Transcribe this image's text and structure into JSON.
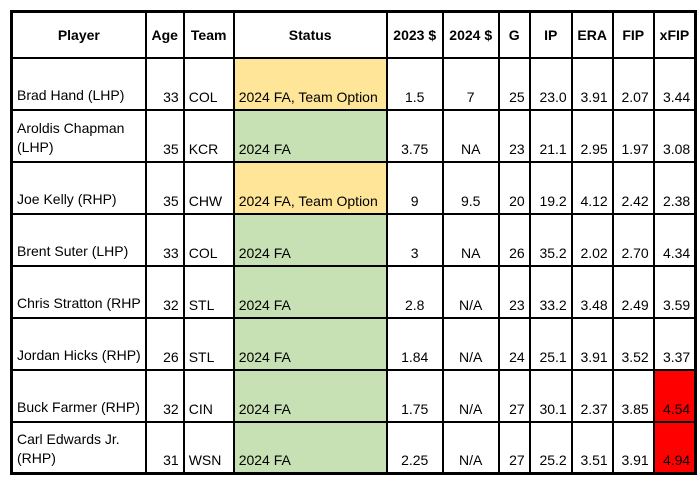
{
  "colors": {
    "status_team_option_yellow": "#FFE598",
    "status_fa_green": "#C7E1B5",
    "xfip_alert_red": "#FF0000",
    "grid_line_black": "#000000",
    "text_black": "#000000",
    "cell_white": "#FFFFFF"
  },
  "chart_data": {
    "type": "table",
    "columns": [
      "Player",
      "Age",
      "Team",
      "Status",
      "2023 $",
      "2024 $",
      "G",
      "IP",
      "ERA",
      "FIP",
      "xFIP"
    ],
    "rows": [
      {
        "player": "Brad Hand (LHP)",
        "age": "33",
        "team": "COL",
        "status": "2024 FA, Team Option",
        "status_color": "yellow",
        "m2023": "1.5",
        "m2024": "7",
        "g": "25",
        "ip": "23.0",
        "era": "3.91",
        "fip": "2.07",
        "xfip": "3.44",
        "xfip_alert": false
      },
      {
        "player": "Aroldis Chapman\n(LHP)",
        "age": "35",
        "team": "KCR",
        "status": "2024 FA",
        "status_color": "green",
        "m2023": "3.75",
        "m2024": "NA",
        "g": "23",
        "ip": "21.1",
        "era": "2.95",
        "fip": "1.97",
        "xfip": "3.08",
        "xfip_alert": false
      },
      {
        "player": "Joe Kelly (RHP)",
        "age": "35",
        "team": "CHW",
        "status": "2024 FA, Team Option",
        "status_color": "yellow",
        "m2023": "9",
        "m2024": "9.5",
        "g": "20",
        "ip": "19.2",
        "era": "4.12",
        "fip": "2.42",
        "xfip": "2.38",
        "xfip_alert": false
      },
      {
        "player": "Brent Suter (LHP)",
        "age": "33",
        "team": "COL",
        "status": "2024 FA",
        "status_color": "green",
        "m2023": "3",
        "m2024": "NA",
        "g": "26",
        "ip": "35.2",
        "era": "2.02",
        "fip": "2.70",
        "xfip": "4.34",
        "xfip_alert": false
      },
      {
        "player": "Chris Stratton (RHP",
        "age": "32",
        "team": "STL",
        "status": "2024 FA",
        "status_color": "green",
        "m2023": "2.8",
        "m2024": "N/A",
        "g": "23",
        "ip": "33.2",
        "era": "3.48",
        "fip": "2.49",
        "xfip": "3.59",
        "xfip_alert": false
      },
      {
        "player": "Jordan Hicks (RHP)",
        "age": "26",
        "team": "STL",
        "status": "2024 FA",
        "status_color": "green",
        "m2023": "1.84",
        "m2024": "N/A",
        "g": "24",
        "ip": "25.1",
        "era": "3.91",
        "fip": "3.52",
        "xfip": "3.37",
        "xfip_alert": false
      },
      {
        "player": "Buck Farmer (RHP)",
        "age": "32",
        "team": "CIN",
        "status": "2024 FA",
        "status_color": "green",
        "m2023": "1.75",
        "m2024": "N/A",
        "g": "27",
        "ip": "30.1",
        "era": "2.37",
        "fip": "3.85",
        "xfip": "4.54",
        "xfip_alert": true
      },
      {
        "player": "Carl Edwards Jr.\n(RHP)",
        "age": "31",
        "team": "WSN",
        "status": "2024 FA",
        "status_color": "green",
        "m2023": "2.25",
        "m2024": "N/A",
        "g": "27",
        "ip": "25.2",
        "era": "3.51",
        "fip": "3.91",
        "xfip": "4.94",
        "xfip_alert": true
      }
    ]
  }
}
